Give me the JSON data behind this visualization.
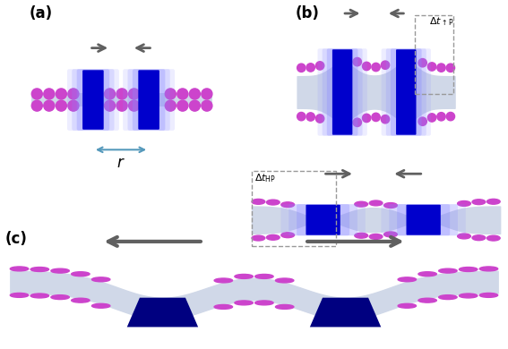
{
  "fig_width": 5.67,
  "fig_height": 3.9,
  "bg_color": "#ffffff",
  "lipid_head_color": "#cc44cc",
  "lipid_tail_color": "#d0d8e8",
  "inclusion_color_inner": "#0000cc",
  "inclusion_color_outer": "#4444ff",
  "inclusion_glow": "#8888ff",
  "arrow_color": "#606060",
  "label_color": "#000000",
  "wedge_color": "#000080",
  "bracket_color": "#5599bb",
  "dashed_color": "#999999",
  "panel_labels": [
    "(a)",
    "(b)",
    "(c)"
  ],
  "panel_label_fontsize": 12
}
